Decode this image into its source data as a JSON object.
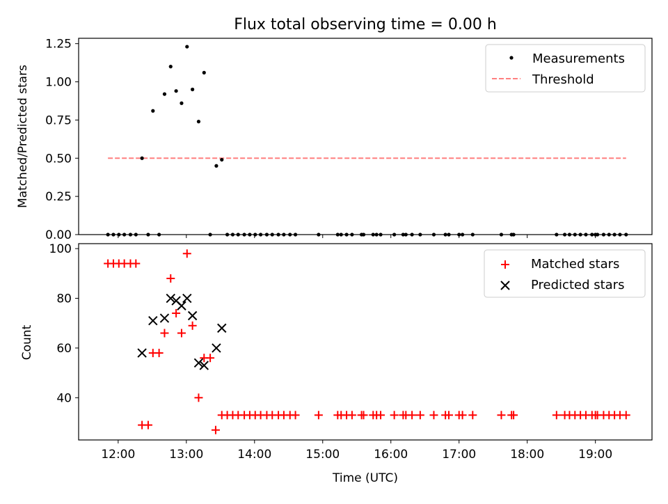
{
  "figure": {
    "title": "Flux total observing time = 0.00 h"
  },
  "chart_data": [
    {
      "type": "scatter",
      "ylabel": "Matched/Predicted stars",
      "xlim": [
        11.42,
        19.83
      ],
      "ylim": [
        0,
        1.285
      ],
      "x_ticks": [
        12,
        13,
        14,
        15,
        16,
        17,
        18,
        19
      ],
      "y_ticks": [
        0.0,
        0.25,
        0.5,
        0.75,
        1.0,
        1.25
      ],
      "y_tick_labels": [
        "0.00",
        "0.25",
        "0.50",
        "0.75",
        "1.00",
        "1.25"
      ],
      "legend": {
        "position": "top-right",
        "entries": [
          "Measurements",
          "Threshold"
        ]
      },
      "series": [
        {
          "name": "Measurements",
          "marker": "dot",
          "color": "#000000",
          "x": [
            12.35,
            12.51,
            12.68,
            12.77,
            12.85,
            12.93,
            13.01,
            13.09,
            13.18,
            13.26,
            13.44,
            13.52,
            11.85,
            11.93,
            12.01,
            12.09,
            12.18,
            12.26,
            12.44,
            12.6,
            13.35,
            13.6,
            13.68,
            13.76,
            13.85,
            13.93,
            14.01,
            14.09,
            14.18,
            14.26,
            14.35,
            14.43,
            14.52,
            14.6,
            14.94,
            15.22,
            15.27,
            15.35,
            15.43,
            15.57,
            15.6,
            15.74,
            15.79,
            15.85,
            16.05,
            16.18,
            16.22,
            16.31,
            16.43,
            16.63,
            16.8,
            16.85,
            17.0,
            17.05,
            17.2,
            17.62,
            17.77,
            17.8,
            18.43,
            18.55,
            18.62,
            18.7,
            18.78,
            18.86,
            18.95,
            19.0,
            19.03,
            19.12,
            19.2,
            19.28,
            19.36,
            19.45
          ],
          "y": [
            0.5,
            0.81,
            0.92,
            1.1,
            0.94,
            0.86,
            1.23,
            0.95,
            0.74,
            1.06,
            0.45,
            0.49,
            0,
            0,
            0,
            0,
            0,
            0,
            0,
            0,
            0,
            0,
            0,
            0,
            0,
            0,
            0,
            0,
            0,
            0,
            0,
            0,
            0,
            0,
            0,
            0,
            0,
            0,
            0,
            0,
            0,
            0,
            0,
            0,
            0,
            0,
            0,
            0,
            0,
            0,
            0,
            0,
            0,
            0,
            0,
            0,
            0,
            0,
            0,
            0,
            0,
            0,
            0,
            0,
            0,
            0,
            0,
            0,
            0,
            0,
            0,
            0
          ]
        },
        {
          "name": "Threshold",
          "style": "dashed",
          "color": "#ff7f7f",
          "x": [
            11.85,
            19.45
          ],
          "y": [
            0.5,
            0.5
          ]
        }
      ]
    },
    {
      "type": "scatter",
      "xlabel": "Time (UTC)",
      "ylabel": "Count",
      "xlim": [
        11.42,
        19.83
      ],
      "ylim": [
        23,
        102
      ],
      "x_ticks": [
        12,
        13,
        14,
        15,
        16,
        17,
        18,
        19
      ],
      "x_tick_labels": [
        "12:00",
        "13:00",
        "14:00",
        "15:00",
        "16:00",
        "17:00",
        "18:00",
        "19:00"
      ],
      "y_ticks": [
        40,
        60,
        80,
        100
      ],
      "y_tick_labels": [
        "40",
        "60",
        "80",
        "100"
      ],
      "legend": {
        "position": "top-right",
        "entries": [
          "Matched stars",
          "Predicted stars"
        ]
      },
      "series": [
        {
          "name": "Matched stars",
          "marker": "plus",
          "color": "#ff0000",
          "x": [
            11.85,
            11.93,
            12.01,
            12.09,
            12.18,
            12.26,
            12.35,
            12.44,
            12.51,
            12.6,
            12.68,
            12.77,
            12.85,
            12.93,
            13.01,
            13.09,
            13.18,
            13.26,
            13.35,
            13.43,
            13.52,
            13.6,
            13.68,
            13.76,
            13.85,
            13.93,
            14.01,
            14.09,
            14.18,
            14.26,
            14.35,
            14.43,
            14.52,
            14.6,
            14.94,
            15.22,
            15.27,
            15.35,
            15.43,
            15.57,
            15.6,
            15.74,
            15.79,
            15.85,
            16.05,
            16.18,
            16.22,
            16.31,
            16.43,
            16.63,
            16.8,
            16.85,
            17.0,
            17.05,
            17.2,
            17.62,
            17.77,
            17.8,
            18.43,
            18.55,
            18.62,
            18.7,
            18.78,
            18.86,
            18.95,
            19.0,
            19.03,
            19.12,
            19.2,
            19.28,
            19.36,
            19.45
          ],
          "y": [
            94,
            94,
            94,
            94,
            94,
            94,
            29,
            29,
            58,
            58,
            66,
            88,
            74,
            66,
            98,
            69,
            40,
            56,
            56,
            27,
            33,
            33,
            33,
            33,
            33,
            33,
            33,
            33,
            33,
            33,
            33,
            33,
            33,
            33,
            33,
            33,
            33,
            33,
            33,
            33,
            33,
            33,
            33,
            33,
            33,
            33,
            33,
            33,
            33,
            33,
            33,
            33,
            33,
            33,
            33,
            33,
            33,
            33,
            33,
            33,
            33,
            33,
            33,
            33,
            33,
            33,
            33,
            33,
            33,
            33,
            33,
            33
          ]
        },
        {
          "name": "Predicted stars",
          "marker": "x",
          "color": "#000000",
          "x": [
            12.35,
            12.51,
            12.68,
            12.77,
            12.85,
            12.93,
            13.01,
            13.09,
            13.18,
            13.26,
            13.44,
            13.52
          ],
          "y": [
            58,
            71,
            72,
            80,
            79,
            77,
            80,
            73,
            54,
            53,
            60,
            68
          ]
        }
      ]
    }
  ]
}
